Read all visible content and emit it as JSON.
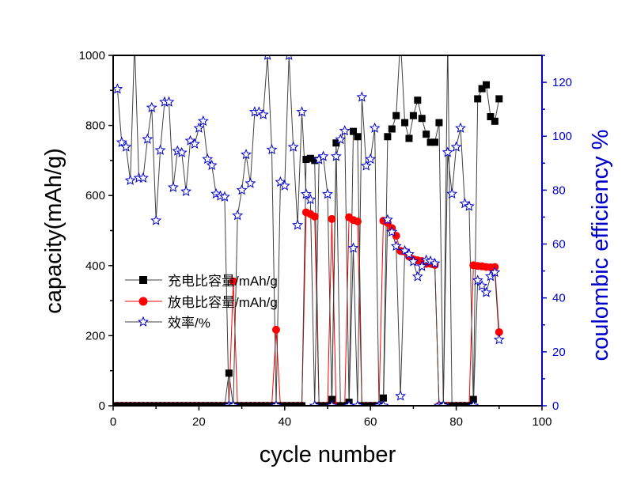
{
  "chart_data": {
    "type": "line",
    "title": "",
    "xlabel": "cycle number",
    "ylabel": "capacity(mAh/g)",
    "ylabel_right": "coulombic efficiency %",
    "xlim": [
      0,
      100
    ],
    "ylim": [
      0,
      1000
    ],
    "ylim_right": [
      0,
      130
    ],
    "x_ticks": [
      "0",
      "20",
      "40",
      "60",
      "80",
      "100"
    ],
    "y_ticks": [
      "0",
      "200",
      "400",
      "600",
      "800",
      "1000"
    ],
    "y_ticks_right": [
      "0",
      "20",
      "40",
      "60",
      "80",
      "100",
      "120"
    ],
    "grid": false,
    "legend_position": "center-left",
    "colors": {
      "charge": "#000000",
      "discharge": "#ff0000",
      "efficiency": "#0000cc",
      "right_axis": "#0000cc",
      "line": "#404040"
    },
    "series": [
      {
        "name": "充电比容量/mAh/g",
        "axis": "left",
        "marker": "square",
        "x": [
          1,
          2,
          3,
          4,
          5,
          6,
          7,
          8,
          9,
          10,
          11,
          12,
          13,
          14,
          15,
          16,
          17,
          18,
          19,
          20,
          21,
          22,
          23,
          24,
          25,
          26,
          27,
          28,
          29,
          30,
          31,
          32,
          33,
          34,
          35,
          36,
          37,
          38,
          39,
          40,
          41,
          42,
          43,
          44,
          45,
          46,
          47,
          48,
          49,
          50,
          51,
          52,
          53,
          54,
          55,
          56,
          57,
          58,
          59,
          60,
          61,
          62,
          63,
          64,
          65,
          66,
          67,
          68,
          69,
          70,
          71,
          72,
          73,
          74,
          75,
          76,
          77,
          78,
          79,
          80,
          81,
          82,
          83,
          84,
          85,
          86,
          87,
          88,
          89,
          90
        ],
        "values": [
          0,
          0,
          0,
          0,
          0,
          0,
          0,
          0,
          0,
          0,
          0,
          0,
          0,
          0,
          0,
          0,
          0,
          0,
          0,
          0,
          0,
          0,
          0,
          0,
          0,
          0,
          93,
          0,
          0,
          0,
          0,
          0,
          0,
          0,
          0,
          0,
          0,
          0,
          0,
          0,
          0,
          0,
          0,
          0,
          703,
          706,
          700,
          0,
          0,
          0,
          18,
          750,
          0,
          0,
          10,
          783,
          768,
          0,
          0,
          0,
          0,
          0,
          22,
          768,
          790,
          828,
          1050,
          808,
          763,
          828,
          872,
          820,
          775,
          752,
          752,
          808,
          0,
          1050,
          0,
          0,
          0,
          0,
          0,
          18,
          876,
          905,
          916,
          825,
          812,
          876
        ]
      },
      {
        "name": "放电比容量/mAh/g",
        "axis": "left",
        "marker": "circle",
        "x": [
          1,
          2,
          3,
          4,
          5,
          6,
          7,
          8,
          9,
          10,
          11,
          12,
          13,
          14,
          15,
          16,
          17,
          18,
          19,
          20,
          21,
          22,
          23,
          24,
          25,
          26,
          27,
          28,
          29,
          30,
          31,
          32,
          33,
          34,
          35,
          36,
          37,
          38,
          39,
          40,
          41,
          42,
          43,
          44,
          45,
          46,
          47,
          48,
          49,
          50,
          51,
          52,
          53,
          54,
          55,
          56,
          57,
          58,
          59,
          60,
          61,
          62,
          63,
          64,
          65,
          66,
          67,
          68,
          69,
          70,
          71,
          72,
          73,
          74,
          75,
          76,
          77,
          78,
          79,
          80,
          81,
          82,
          83,
          84,
          85,
          86,
          87,
          88,
          89,
          90
        ],
        "values": [
          0,
          0,
          0,
          0,
          0,
          0,
          0,
          0,
          0,
          0,
          0,
          0,
          0,
          0,
          0,
          0,
          0,
          0,
          0,
          0,
          0,
          0,
          0,
          0,
          0,
          0,
          0,
          355,
          0,
          0,
          0,
          0,
          0,
          0,
          0,
          0,
          0,
          217,
          0,
          0,
          0,
          0,
          0,
          0,
          552,
          547,
          540,
          0,
          0,
          0,
          533,
          0,
          0,
          0,
          538,
          530,
          526,
          0,
          0,
          0,
          0,
          0,
          528,
          522,
          507,
          485,
          442,
          440,
          426,
          418,
          415,
          413,
          405,
          405,
          402,
          0,
          0,
          0,
          0,
          0,
          0,
          0,
          0,
          401,
          399,
          398,
          396,
          395,
          396,
          210
        ]
      },
      {
        "name": "效率/%",
        "axis": "right",
        "marker": "star",
        "x": [
          1,
          2,
          3,
          4,
          5,
          6,
          7,
          8,
          9,
          10,
          11,
          12,
          13,
          14,
          15,
          16,
          17,
          18,
          19,
          20,
          21,
          22,
          23,
          24,
          25,
          26,
          27,
          28,
          29,
          30,
          31,
          32,
          33,
          34,
          35,
          36,
          37,
          38,
          39,
          40,
          41,
          42,
          43,
          44,
          45,
          46,
          47,
          48,
          49,
          50,
          51,
          52,
          53,
          54,
          55,
          56,
          57,
          58,
          59,
          60,
          61,
          62,
          63,
          64,
          65,
          66,
          67,
          68,
          69,
          70,
          71,
          72,
          73,
          74,
          75,
          76,
          77,
          78,
          79,
          80,
          81,
          82,
          83,
          84,
          85,
          86,
          87,
          88,
          89,
          90
        ],
        "values": [
          117.5,
          97.7,
          96,
          83.6,
          135,
          84.5,
          84.5,
          98.9,
          110.6,
          68.7,
          94.8,
          112.7,
          112.7,
          81,
          94.5,
          93.9,
          79.5,
          98.3,
          97.1,
          103,
          105.6,
          91.5,
          89.2,
          78.6,
          77.8,
          77.5,
          0,
          0,
          70.6,
          80,
          93.2,
          82.5,
          109,
          109,
          108,
          130,
          95,
          0,
          83,
          81.6,
          130,
          96,
          67,
          109,
          78.5,
          76.5,
          0,
          91.3,
          92.5,
          78.5,
          0,
          92.5,
          98.8,
          102,
          0,
          58.5,
          0,
          114.5,
          89,
          91.5,
          103,
          0,
          0,
          69,
          64.5,
          59.2,
          3.6,
          57.5,
          56.2,
          53.5,
          47.9,
          51.7,
          54,
          53.6,
          52.8,
          0,
          0,
          94,
          78.6,
          96,
          103,
          75,
          74,
          0,
          46.5,
          44.5,
          42,
          48,
          49.5,
          24.5
        ]
      }
    ]
  }
}
